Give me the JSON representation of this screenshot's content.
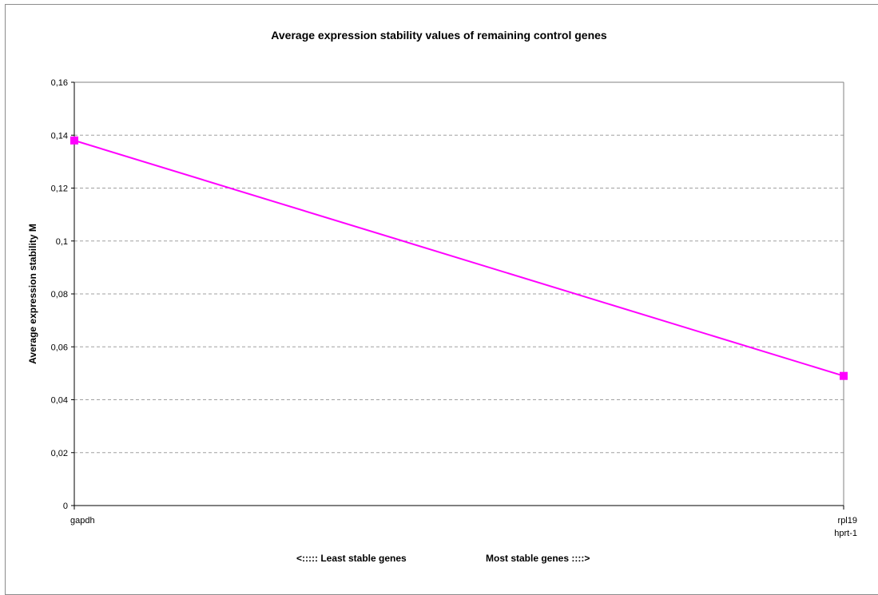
{
  "chart_data": {
    "type": "line",
    "title": "Average expression stability values of remaining control genes",
    "ylabel": "Average expression stability M",
    "xlabel_left": "<::::: Least stable genes",
    "xlabel_right": "Most stable genes ::::>",
    "categories": [
      [
        "gapdh"
      ],
      [
        "rpl19",
        "hprt-1"
      ]
    ],
    "series": [
      {
        "values": [
          0.138,
          0.049
        ],
        "color": "#ff00ff"
      }
    ],
    "ylim": [
      0,
      0.16
    ],
    "yticks": [
      0,
      0.02,
      0.04,
      0.06,
      0.08,
      0.1,
      0.12,
      0.14,
      0.16
    ],
    "ytick_labels": [
      "0",
      "0,02",
      "0,04",
      "0,06",
      "0,08",
      "0,1",
      "0,12",
      "0,14",
      "0,16"
    ],
    "grid": true
  }
}
